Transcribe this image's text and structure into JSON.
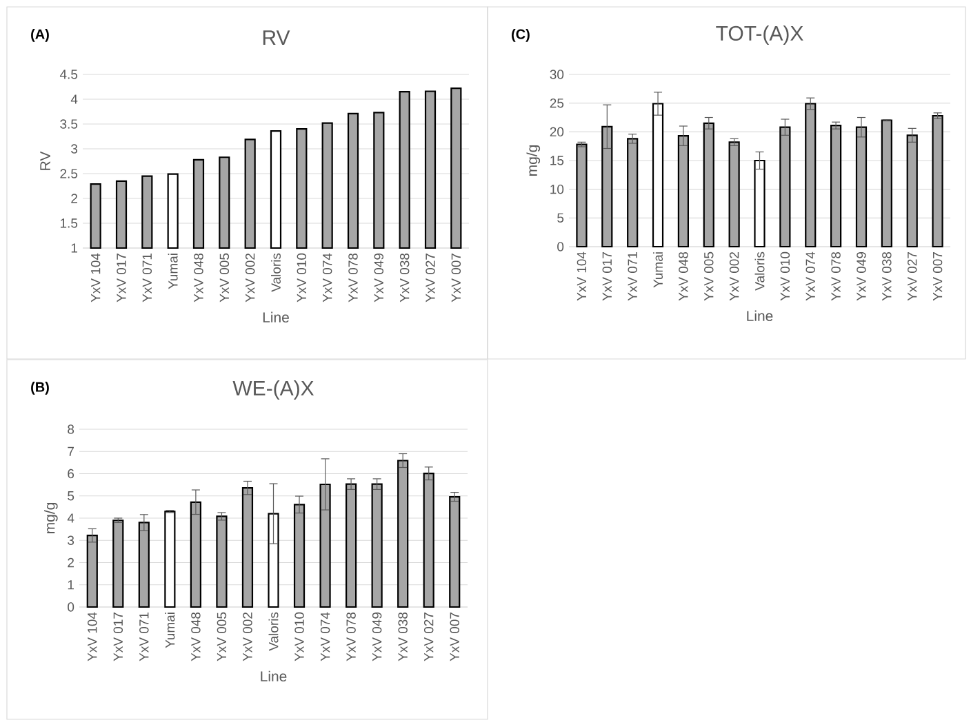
{
  "chart_data": [
    {
      "type": "bar",
      "title": "RV",
      "xlabel": "Line",
      "ylabel": "RV",
      "annotations": [
        "**(A)**"
      ],
      "categories": [
        "YxV 104",
        "YxV 017",
        "YxV 071",
        "Yumai",
        "YxV 048",
        "YxV 005",
        "YxV 002",
        "Valoris",
        "YxV 010",
        "YxV 074",
        "YxV 078",
        "YxV 049",
        "YxV 038",
        "YxV 027",
        "YxV 007"
      ],
      "values": [
        2.29,
        2.35,
        2.45,
        2.49,
        2.78,
        2.83,
        3.19,
        3.36,
        3.4,
        3.52,
        3.71,
        3.73,
        4.15,
        4.16,
        4.22
      ],
      "colors": [
        "#a6a6a6",
        "#a6a6a6",
        "#a6a6a6",
        "#ffffff",
        "#a6a6a6",
        "#a6a6a6",
        "#a6a6a6",
        "#ffffff",
        "#a6a6a6",
        "#a6a6a6",
        "#a6a6a6",
        "#a6a6a6",
        "#a6a6a6",
        "#a6a6a6",
        "#a6a6a6"
      ],
      "ylim": [
        1,
        4.5
      ],
      "yticks": [
        1,
        1.5,
        2,
        2.5,
        3,
        3.5,
        4,
        4.5
      ],
      "grid": "y"
    },
    {
      "type": "bar",
      "title": "TOT-(A)X",
      "xlabel": "Line",
      "ylabel": "mg/g",
      "annotations": [
        "**(C)**"
      ],
      "categories": [
        "YxV 104",
        "YxV 017",
        "YxV 071",
        "Yumai",
        "YxV 048",
        "YxV 005",
        "YxV 002",
        "Valoris",
        "YxV 010",
        "YxV 074",
        "YxV 078",
        "YxV 049",
        "YxV 038",
        "YxV 027",
        "YxV 007"
      ],
      "values": [
        17.8,
        20.9,
        18.8,
        24.9,
        19.3,
        21.5,
        18.2,
        15.0,
        20.8,
        24.9,
        21.1,
        20.8,
        22.0,
        19.4,
        22.8
      ],
      "errors": [
        0.4,
        3.8,
        0.8,
        2.0,
        1.7,
        1.0,
        0.6,
        1.5,
        1.4,
        1.0,
        0.6,
        1.7,
        0.1,
        1.2,
        0.5
      ],
      "colors": [
        "#a6a6a6",
        "#a6a6a6",
        "#a6a6a6",
        "#ffffff",
        "#a6a6a6",
        "#a6a6a6",
        "#a6a6a6",
        "#ffffff",
        "#a6a6a6",
        "#a6a6a6",
        "#a6a6a6",
        "#a6a6a6",
        "#a6a6a6",
        "#a6a6a6",
        "#a6a6a6"
      ],
      "ylim": [
        0,
        30
      ],
      "yticks": [
        0,
        5,
        10,
        15,
        20,
        25,
        30
      ],
      "grid": "y"
    },
    {
      "type": "bar",
      "title": "WE-(A)X",
      "xlabel": "Line",
      "ylabel": "mg/g",
      "annotations": [
        "**(B)**"
      ],
      "categories": [
        "YxV 104",
        "YxV 017",
        "YxV 071",
        "Yumai",
        "YxV 048",
        "YxV 005",
        "YxV 002",
        "Valoris",
        "YxV 010",
        "YxV 074",
        "YxV 078",
        "YxV 049",
        "YxV 038",
        "YxV 027",
        "YxV 007"
      ],
      "values": [
        3.22,
        3.9,
        3.8,
        4.3,
        4.72,
        4.08,
        5.36,
        4.2,
        4.61,
        5.52,
        5.53,
        5.53,
        6.59,
        6.01,
        4.96
      ],
      "errors": [
        0.3,
        0.1,
        0.36,
        0.05,
        0.55,
        0.17,
        0.3,
        1.35,
        0.38,
        1.15,
        0.24,
        0.24,
        0.31,
        0.29,
        0.2
      ],
      "colors": [
        "#a6a6a6",
        "#a6a6a6",
        "#a6a6a6",
        "#ffffff",
        "#a6a6a6",
        "#a6a6a6",
        "#a6a6a6",
        "#ffffff",
        "#a6a6a6",
        "#a6a6a6",
        "#a6a6a6",
        "#a6a6a6",
        "#a6a6a6",
        "#a6a6a6",
        "#a6a6a6"
      ],
      "ylim": [
        0,
        8
      ],
      "yticks": [
        0,
        1,
        2,
        3,
        4,
        5,
        6,
        7,
        8
      ],
      "grid": "y"
    }
  ]
}
